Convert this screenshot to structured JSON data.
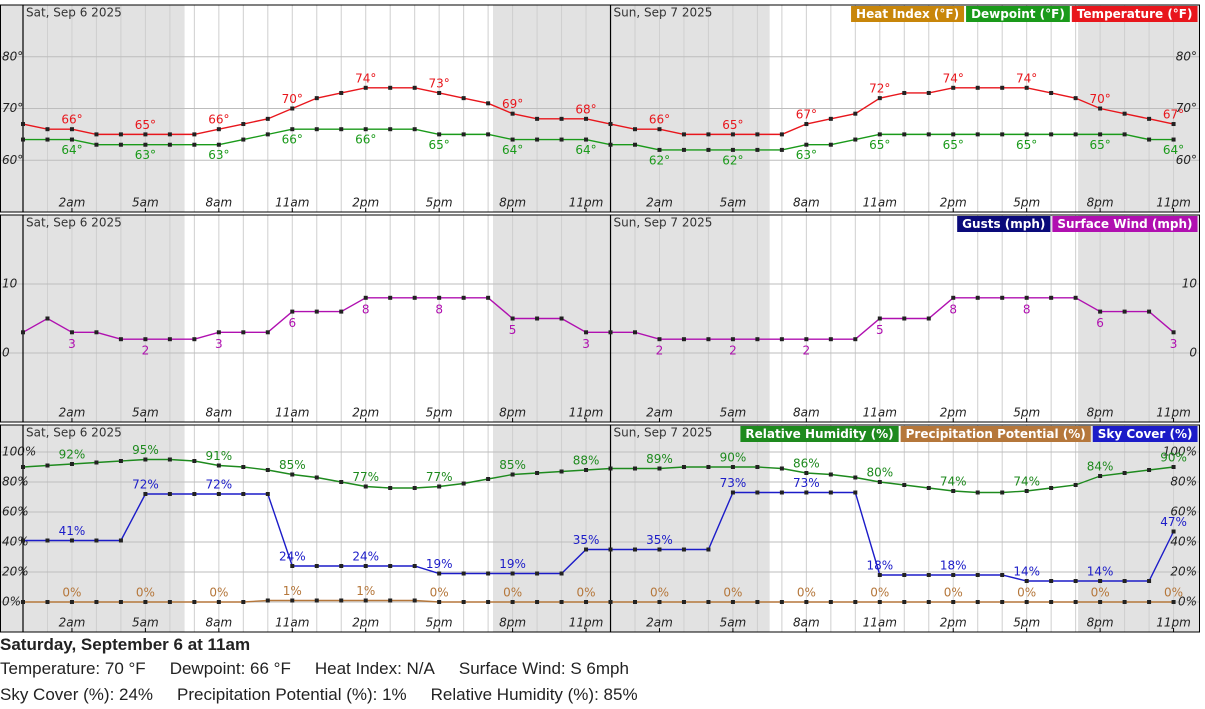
{
  "chart_data": [
    {
      "type": "line",
      "day_labels": [
        "Sat, Sep 6 2025",
        "Sun, Sep 7 2025"
      ],
      "categories": [
        null,
        null,
        "2am",
        null,
        null,
        "5am",
        null,
        null,
        "8am",
        null,
        null,
        "11am",
        null,
        null,
        "2pm",
        null,
        null,
        "5pm",
        null,
        null,
        "8pm",
        null,
        null,
        "11pm",
        null,
        null,
        "2am",
        null,
        null,
        "5am",
        null,
        null,
        "8am",
        null,
        null,
        "11am",
        null,
        null,
        "2pm",
        null,
        null,
        "5pm",
        null,
        null,
        "8pm",
        null,
        null,
        "11pm"
      ],
      "ylim": [
        50,
        90
      ],
      "yticks": [
        {
          "value": 60,
          "label": "60°"
        },
        {
          "value": 70,
          "label": "70°"
        },
        {
          "value": 80,
          "label": "80°"
        }
      ],
      "grid": true,
      "legend": "top-right",
      "series": [
        {
          "name": "Heat Index (°F)",
          "color": "#c8860a",
          "values": [
            null,
            null,
            null,
            null,
            null,
            null,
            null,
            null,
            null,
            null,
            null,
            null,
            null,
            null,
            null,
            null,
            null,
            null,
            null,
            null,
            null,
            null,
            null,
            null,
            null,
            null,
            null,
            null,
            null,
            null,
            null,
            null,
            null,
            null,
            null,
            null,
            null,
            null,
            null,
            null,
            null,
            null,
            null,
            null,
            null,
            null,
            null,
            null
          ]
        },
        {
          "name": "Dewpoint (°F)",
          "color": "#1a9a1a",
          "values": [
            64,
            64,
            64,
            63,
            63,
            63,
            63,
            63,
            63,
            64,
            65,
            66,
            66,
            66,
            66,
            66,
            66,
            65,
            65,
            65,
            64,
            64,
            64,
            64,
            63,
            63,
            62,
            62,
            62,
            62,
            62,
            62,
            63,
            63,
            64,
            65,
            65,
            65,
            65,
            65,
            65,
            65,
            65,
            65,
            65,
            65,
            64,
            64
          ],
          "value_labels": [
            null,
            null,
            "64°",
            null,
            null,
            "63°",
            null,
            null,
            "63°",
            null,
            null,
            "66°",
            null,
            null,
            "66°",
            null,
            null,
            "65°",
            null,
            null,
            "64°",
            null,
            null,
            "64°",
            null,
            null,
            "62°",
            null,
            null,
            "62°",
            null,
            null,
            "63°",
            null,
            null,
            "65°",
            null,
            null,
            "65°",
            null,
            null,
            "65°",
            null,
            null,
            "65°",
            null,
            null,
            "64°"
          ]
        },
        {
          "name": "Temperature (°F)",
          "color": "#e8161c",
          "values": [
            67,
            66,
            66,
            65,
            65,
            65,
            65,
            65,
            66,
            67,
            68,
            70,
            72,
            73,
            74,
            74,
            74,
            73,
            72,
            71,
            69,
            68,
            68,
            68,
            67,
            66,
            66,
            65,
            65,
            65,
            65,
            65,
            67,
            68,
            69,
            72,
            73,
            73,
            74,
            74,
            74,
            74,
            73,
            72,
            70,
            69,
            68,
            67
          ],
          "value_labels": [
            null,
            null,
            "66°",
            null,
            null,
            "65°",
            null,
            null,
            "66°",
            null,
            null,
            "70°",
            null,
            null,
            "74°",
            null,
            null,
            "73°",
            null,
            null,
            "69°",
            null,
            null,
            "68°",
            null,
            null,
            "66°",
            null,
            null,
            "65°",
            null,
            null,
            "67°",
            null,
            null,
            "72°",
            null,
            null,
            "74°",
            null,
            null,
            "74°",
            null,
            null,
            "70°",
            null,
            null,
            "67°"
          ]
        }
      ]
    },
    {
      "type": "line",
      "day_labels": [
        "Sat, Sep 6 2025",
        "Sun, Sep 7 2025"
      ],
      "categories": [
        null,
        null,
        "2am",
        null,
        null,
        "5am",
        null,
        null,
        "8am",
        null,
        null,
        "11am",
        null,
        null,
        "2pm",
        null,
        null,
        "5pm",
        null,
        null,
        "8pm",
        null,
        null,
        "11pm",
        null,
        null,
        "2am",
        null,
        null,
        "5am",
        null,
        null,
        "8am",
        null,
        null,
        "11am",
        null,
        null,
        "2pm",
        null,
        null,
        "5pm",
        null,
        null,
        "8pm",
        null,
        null,
        "11pm"
      ],
      "ylim": [
        -10,
        20
      ],
      "yticks": [
        0,
        10
      ],
      "grid": true,
      "legend": "top-right",
      "series": [
        {
          "name": "Gusts (mph)",
          "color": "#0a0a7a",
          "values": [
            null,
            null,
            null,
            null,
            null,
            null,
            null,
            null,
            null,
            null,
            null,
            null,
            null,
            null,
            null,
            null,
            null,
            null,
            null,
            null,
            null,
            null,
            null,
            null,
            null,
            null,
            null,
            null,
            null,
            null,
            null,
            null,
            null,
            null,
            null,
            null,
            null,
            null,
            null,
            null,
            null,
            null,
            null,
            null,
            null,
            null,
            null,
            null
          ]
        },
        {
          "name": "Surface Wind (mph)",
          "color": "#b010b0",
          "values": [
            3,
            5,
            3,
            3,
            2,
            2,
            2,
            2,
            3,
            3,
            3,
            6,
            6,
            6,
            8,
            8,
            8,
            8,
            8,
            8,
            5,
            5,
            5,
            3,
            3,
            3,
            2,
            2,
            2,
            2,
            2,
            2,
            2,
            2,
            2,
            5,
            5,
            5,
            8,
            8,
            8,
            8,
            8,
            8,
            6,
            6,
            6,
            3
          ]
        }
      ]
    },
    {
      "type": "line",
      "day_labels": [
        "Sat, Sep 6 2025",
        "Sun, Sep 7 2025"
      ],
      "categories": [
        null,
        null,
        "2am",
        null,
        null,
        "5am",
        null,
        null,
        "8am",
        null,
        null,
        "11am",
        null,
        null,
        "2pm",
        null,
        null,
        "5pm",
        null,
        null,
        "8pm",
        null,
        null,
        "11pm",
        null,
        null,
        "2am",
        null,
        null,
        "5am",
        null,
        null,
        "8am",
        null,
        null,
        "11am",
        null,
        null,
        "2pm",
        null,
        null,
        "5pm",
        null,
        null,
        "8pm",
        null,
        null,
        "11pm"
      ],
      "ylim": [
        -20,
        118
      ],
      "yticks": [
        {
          "value": 0,
          "label": "0%"
        },
        {
          "value": 20,
          "label": "20%"
        },
        {
          "value": 40,
          "label": "40%"
        },
        {
          "value": 60,
          "label": "60%"
        },
        {
          "value": 80,
          "label": "80%"
        },
        {
          "value": 100,
          "label": "100%"
        }
      ],
      "grid": true,
      "legend": "top-right",
      "series": [
        {
          "name": "Relative Humidity (%)",
          "color": "#1e8a1e",
          "values": [
            90,
            91,
            92,
            93,
            94,
            95,
            95,
            94,
            91,
            90,
            88,
            85,
            83,
            80,
            77,
            76,
            76,
            77,
            79,
            82,
            85,
            86,
            87,
            88,
            89,
            89,
            89,
            90,
            90,
            90,
            90,
            89,
            86,
            85,
            83,
            80,
            78,
            76,
            74,
            73,
            73,
            74,
            76,
            78,
            84,
            86,
            88,
            90
          ],
          "value_labels": [
            null,
            null,
            "92%",
            null,
            null,
            "95%",
            null,
            null,
            "91%",
            null,
            null,
            "85%",
            null,
            null,
            "77%",
            null,
            null,
            "77%",
            null,
            null,
            "85%",
            null,
            null,
            "88%",
            null,
            null,
            "89%",
            null,
            null,
            "90%",
            null,
            null,
            "86%",
            null,
            null,
            "80%",
            null,
            null,
            "74%",
            null,
            null,
            "74%",
            null,
            null,
            "84%",
            null,
            null,
            "90%"
          ]
        },
        {
          "name": "Precipitation Potential (%)",
          "color": "#b5773b",
          "values": [
            0,
            0,
            0,
            0,
            0,
            0,
            0,
            0,
            0,
            0,
            1,
            1,
            1,
            1,
            1,
            1,
            1,
            0,
            0,
            0,
            0,
            0,
            0,
            0,
            0,
            0,
            0,
            0,
            0,
            0,
            0,
            0,
            0,
            0,
            0,
            0,
            0,
            0,
            0,
            0,
            0,
            0,
            0,
            0,
            0,
            0,
            0,
            0
          ],
          "value_labels": [
            null,
            null,
            "0%",
            null,
            null,
            "0%",
            null,
            null,
            "0%",
            null,
            null,
            "1%",
            null,
            null,
            "1%",
            null,
            null,
            "0%",
            null,
            null,
            "0%",
            null,
            null,
            "0%",
            null,
            null,
            "0%",
            null,
            null,
            "0%",
            null,
            null,
            "0%",
            null,
            null,
            "0%",
            null,
            null,
            "0%",
            null,
            null,
            "0%",
            null,
            null,
            "0%",
            null,
            null,
            "0%"
          ]
        },
        {
          "name": "Sky Cover (%)",
          "color": "#1c1cc8",
          "values": [
            41,
            41,
            41,
            41,
            41,
            72,
            72,
            72,
            72,
            72,
            72,
            24,
            24,
            24,
            24,
            24,
            24,
            19,
            19,
            19,
            19,
            19,
            19,
            35,
            35,
            35,
            35,
            35,
            35,
            73,
            73,
            73,
            73,
            73,
            73,
            18,
            18,
            18,
            18,
            18,
            18,
            14,
            14,
            14,
            14,
            14,
            14,
            47
          ],
          "value_labels": [
            null,
            null,
            "41%",
            null,
            null,
            "72%",
            null,
            null,
            "72%",
            null,
            null,
            "24%",
            null,
            null,
            "24%",
            null,
            null,
            "19%",
            null,
            null,
            "19%",
            null,
            null,
            "35%",
            null,
            null,
            "35%",
            null,
            null,
            "73%",
            null,
            null,
            "73%",
            null,
            null,
            "18%",
            null,
            null,
            "18%",
            null,
            null,
            "14%",
            null,
            null,
            "14%",
            null,
            null,
            "47%"
          ]
        }
      ]
    }
  ],
  "details": {
    "heading": "Saturday, September 6 at 11am",
    "lines": [
      [
        "Temperature: 70 °F",
        "Dewpoint: 66 °F",
        "Heat Index: N/A",
        "Surface Wind: S 6mph"
      ],
      [
        "Sky Cover (%): 24%",
        "Precipitation Potential (%): 1%",
        "Relative Humidity (%): 85%"
      ]
    ]
  }
}
